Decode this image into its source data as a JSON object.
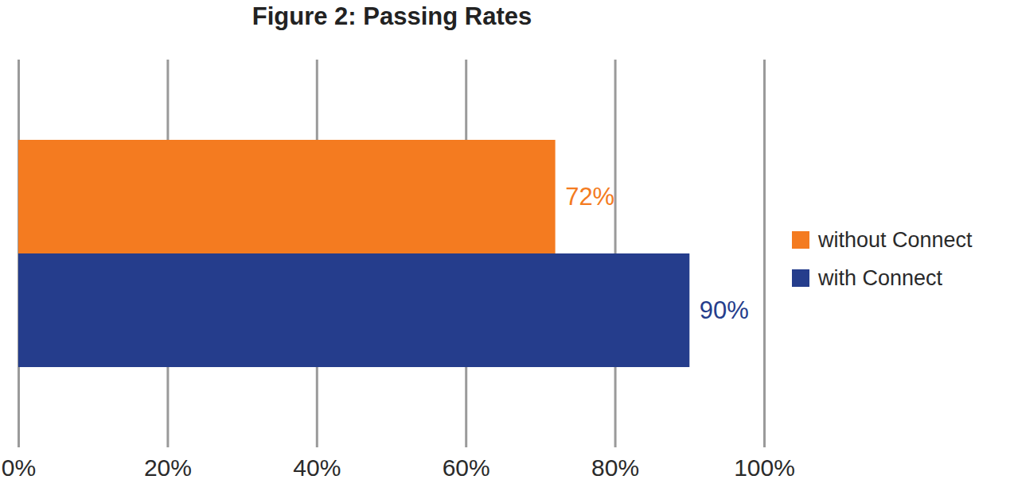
{
  "chart_data": {
    "type": "bar",
    "title": "Figure 2: Passing Rates",
    "orientation": "horizontal",
    "categories": [
      "without Connect",
      "with Connect"
    ],
    "values": [
      72,
      90
    ],
    "value_labels": [
      "72%",
      "90%"
    ],
    "colors": [
      "#f47b20",
      "#253d8c"
    ],
    "data_labels": true,
    "xlim": [
      0,
      100
    ],
    "xticks": [
      {
        "value": 0,
        "label": "0%"
      },
      {
        "value": 20,
        "label": "20%"
      },
      {
        "value": 40,
        "label": "40%"
      },
      {
        "value": 60,
        "label": "60%"
      },
      {
        "value": 80,
        "label": "80%"
      },
      {
        "value": 100,
        "label": "100%"
      }
    ],
    "grid": true,
    "legend": "right",
    "tick_labels": "x"
  }
}
